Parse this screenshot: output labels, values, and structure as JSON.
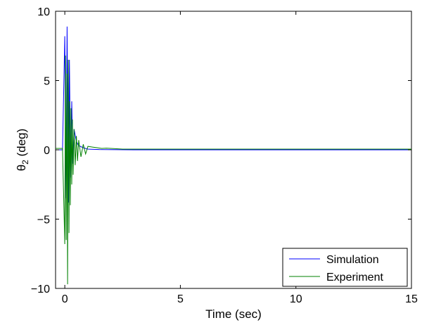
{
  "chart_data": {
    "type": "line",
    "title": "",
    "xlabel": "Time (sec)",
    "ylabel_main": "θ",
    "ylabel_sub": "2",
    "ylabel_rest": " (deg)",
    "xlim": [
      -0.4,
      15
    ],
    "ylim": [
      -10,
      10
    ],
    "xticks": [
      0,
      5,
      10,
      15
    ],
    "yticks": [
      -10,
      -5,
      0,
      5,
      10
    ],
    "grid": false,
    "legend_position": "bottom-right",
    "series": [
      {
        "name": "Simulation",
        "color": "#0000ff",
        "x": [
          -0.4,
          -0.1,
          0.0,
          0.05,
          0.1,
          0.15,
          0.2,
          0.25,
          0.3,
          0.35,
          0.4,
          0.5,
          0.6,
          0.8,
          1.0,
          1.5,
          2.0,
          3.0,
          4.0,
          6.0,
          8.0,
          10.0,
          12.0,
          15.0
        ],
        "y": [
          0,
          0,
          8.2,
          -3.5,
          8.9,
          -3.8,
          6.5,
          -2.0,
          3.5,
          -1.0,
          1.5,
          0.6,
          0.3,
          0.15,
          0.05,
          0.02,
          0.01,
          0,
          0,
          0,
          0,
          0,
          0,
          0
        ]
      },
      {
        "name": "Experiment",
        "color": "#008000",
        "x": [
          -0.4,
          -0.1,
          0.0,
          0.03,
          0.06,
          0.09,
          0.12,
          0.15,
          0.18,
          0.21,
          0.24,
          0.27,
          0.3,
          0.33,
          0.36,
          0.4,
          0.45,
          0.5,
          0.55,
          0.6,
          0.7,
          0.8,
          0.9,
          1.0,
          1.2,
          1.4,
          1.6,
          1.8,
          2.0,
          2.5,
          3.0,
          4.0,
          5.0,
          7.0,
          9.0,
          11.0,
          13.0,
          15.0
        ],
        "y": [
          0.1,
          0.1,
          -6.8,
          6.8,
          -6.5,
          5.5,
          -9.7,
          6.5,
          -6.0,
          3.5,
          -4.0,
          3.0,
          -2.5,
          2.2,
          -1.8,
          1.5,
          -1.1,
          1.0,
          -0.8,
          0.7,
          -0.5,
          0.4,
          -0.3,
          0.25,
          0.2,
          0.15,
          0.1,
          0.12,
          0.1,
          0.05,
          0.05,
          0.05,
          0.05,
          0.05,
          0.05,
          0.05,
          0.05,
          0.05
        ]
      }
    ]
  }
}
